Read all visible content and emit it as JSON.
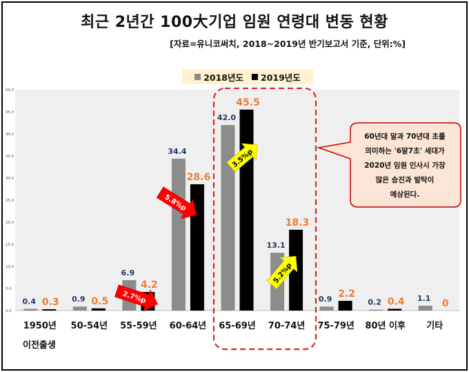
{
  "title": "최근 2년간 100大기업 임원 연령대 변동 현황",
  "subtitle": "[자료=유니코써치, 2018~2019년 반기보고서 기준, 단위:%]",
  "colors": {
    "series_2018": "#8c8c8c",
    "series_2019": "#000000",
    "label_2018": "#1f3864",
    "label_2019": "#ed7d31",
    "plot_bg": "#efefef",
    "legend_bg": "#fff2cc",
    "highlight_box": "#e02020",
    "callout_fill": "#fce4d6",
    "callout_border": "#c00000",
    "arrow_red": "#ff0000",
    "arrow_yellow": "#ffff00"
  },
  "chart_data": {
    "type": "bar",
    "categories": [
      "1950년",
      "50-54년",
      "55-59년",
      "60-64년",
      "65-69년",
      "70-74년",
      "75-79년",
      "80년 이후",
      "기타"
    ],
    "category_sublabel": {
      "index": 0,
      "text": "이전출생"
    },
    "series": [
      {
        "name": "2018년도",
        "values": [
          0.4,
          0.9,
          6.9,
          34.4,
          42.0,
          13.1,
          0.9,
          0.2,
          1.1
        ],
        "labels": [
          "0.4",
          "0.9",
          "6.9",
          "34.4",
          "42.0",
          "13.1",
          "0.9",
          "0.2",
          "1.1"
        ]
      },
      {
        "name": "2019년도",
        "values": [
          0.3,
          0.5,
          4.2,
          28.6,
          45.5,
          18.3,
          2.2,
          0.4,
          0
        ],
        "labels": [
          "0.3",
          "0.5",
          "4.2",
          "28.6",
          "45.5",
          "18.3",
          "2.2",
          "0.4",
          "0"
        ]
      }
    ],
    "ylim": [
      0,
      50
    ],
    "yticks": [
      "0.0",
      "5.0",
      "10.0",
      "15.0",
      "20.0",
      "25.0",
      "30.0",
      "35.0",
      "40.0",
      "45.0",
      "50.0"
    ],
    "grid": false,
    "legend": "top-center",
    "annotations": [
      {
        "text": "2.7%p",
        "category": "55-59년",
        "style": "red-arrow",
        "direction": "down"
      },
      {
        "text": "5.8%p",
        "category": "60-64년",
        "style": "red-arrow",
        "direction": "down"
      },
      {
        "text": "3.5%p",
        "category": "65-69년",
        "style": "yellow-arrow",
        "direction": "up"
      },
      {
        "text": "5.2%p",
        "category": "70-74년",
        "style": "yellow-arrow",
        "direction": "up"
      }
    ]
  },
  "callout": {
    "lines": [
      "60년대 말과 70년대 초를",
      "의미하는 '6말7초' 세대가",
      "2020년 임원 인사시 가장",
      "많은 승진과 발탁이",
      "예상된다."
    ]
  }
}
